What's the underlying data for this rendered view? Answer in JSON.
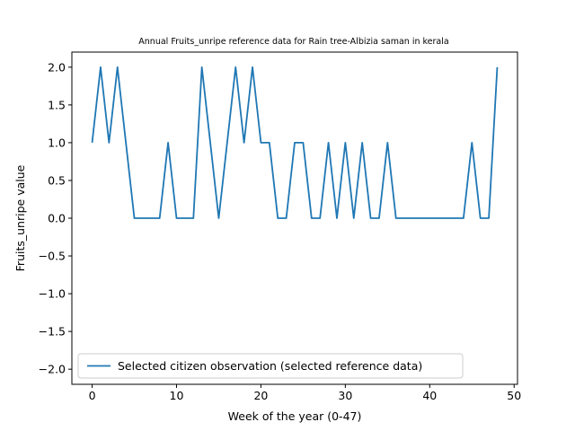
{
  "chart_data": {
    "type": "line",
    "title": "Annual Fruits_unripe reference data for Rain tree-Albizia saman in kerala",
    "xlabel": "Week of the year (0-47)",
    "ylabel": "Fruits_unripe value",
    "xlim": [
      -2.4,
      50.4
    ],
    "ylim": [
      -2.2,
      2.2
    ],
    "x_ticks": [
      0,
      10,
      20,
      30,
      40,
      50
    ],
    "y_ticks": [
      -2.0,
      -1.5,
      -1.0,
      -0.5,
      0.0,
      0.5,
      1.0,
      1.5,
      2.0
    ],
    "grid": false,
    "legend_position": "lower-left",
    "series": [
      {
        "name": "Selected citizen observation (selected reference data)",
        "color": "#1f77b4",
        "x": [
          0,
          1,
          2,
          3,
          4,
          5,
          6,
          7,
          8,
          9,
          10,
          11,
          12,
          13,
          14,
          15,
          16,
          17,
          18,
          19,
          20,
          21,
          22,
          23,
          24,
          25,
          26,
          27,
          28,
          29,
          30,
          31,
          32,
          33,
          34,
          35,
          36,
          37,
          38,
          39,
          40,
          41,
          42,
          43,
          44,
          45,
          46,
          47,
          48
        ],
        "y": [
          1,
          2,
          1,
          2,
          1,
          0,
          0,
          0,
          0,
          1,
          0,
          0,
          0,
          2,
          1,
          0,
          1,
          2,
          1,
          2,
          1,
          1,
          0,
          0,
          1,
          1,
          0,
          0,
          1,
          0,
          1,
          0,
          1,
          0,
          0,
          1,
          0,
          0,
          0,
          0,
          0,
          0,
          0,
          0,
          0,
          1,
          0,
          0,
          2
        ]
      }
    ]
  }
}
